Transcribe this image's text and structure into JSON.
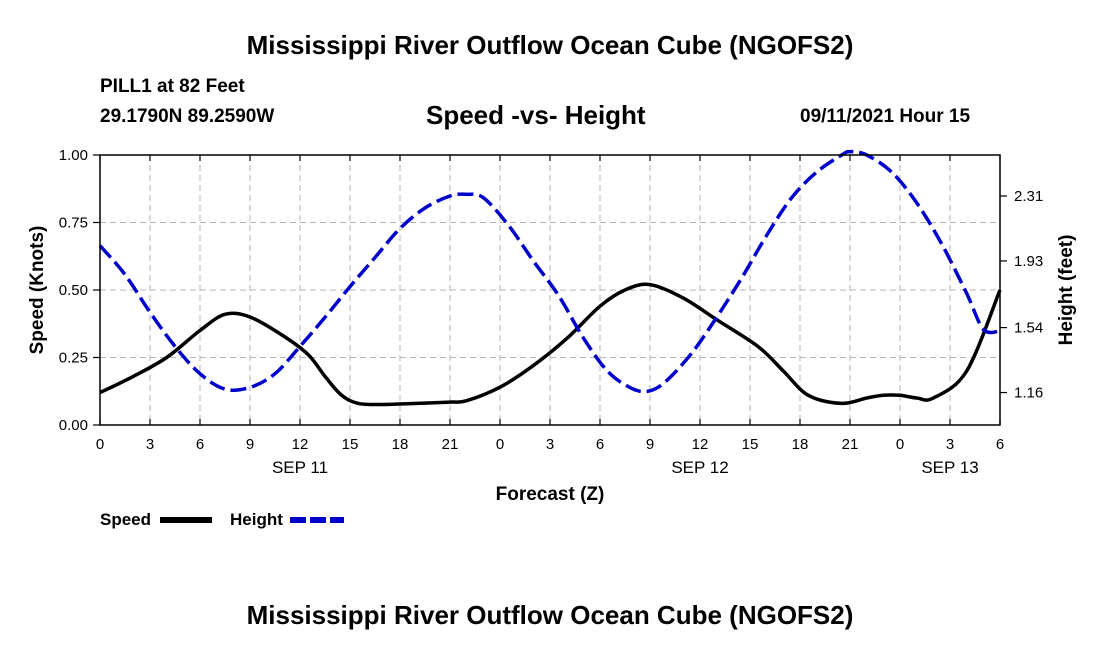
{
  "header": {
    "title": "Mississippi River Outflow Ocean Cube (NGOFS2)",
    "station": "PILL1 at 82 Feet",
    "coords": "29.1790N  89.2590W",
    "subtitle": "Speed -vs- Height",
    "datetime": "09/11/2021 Hour 15"
  },
  "footer": {
    "title": "Mississippi River Outflow Ocean Cube (NGOFS2)"
  },
  "legend": {
    "speed_label": "Speed",
    "height_label": "Height"
  },
  "colors": {
    "speed": "#000000",
    "height": "#0000cc",
    "grid": "#b4b4b4"
  },
  "chart_data": {
    "type": "line",
    "title": "Speed -vs- Height",
    "xlabel": "Forecast (Z)",
    "ylabel": "Speed (Knots)",
    "y2label": "Height (feet)",
    "xlim": [
      0,
      54
    ],
    "ylim": [
      0,
      1.0
    ],
    "y2lim": [
      0.97,
      2.55
    ],
    "x_ticks": [
      0,
      3,
      6,
      9,
      12,
      15,
      18,
      21,
      24,
      27,
      30,
      33,
      36,
      39,
      42,
      45,
      48,
      51,
      54
    ],
    "x_tick_labels": [
      "0",
      "3",
      "6",
      "9",
      "12",
      "15",
      "18",
      "21",
      "0",
      "3",
      "6",
      "9",
      "12",
      "15",
      "18",
      "21",
      "0",
      "3",
      "6"
    ],
    "date_labels": [
      {
        "x": 12,
        "label": "SEP 11"
      },
      {
        "x": 36,
        "label": "SEP 12"
      },
      {
        "x": 51,
        "label": "SEP 13"
      }
    ],
    "y_ticks": [
      0.0,
      0.25,
      0.5,
      0.75,
      1.0
    ],
    "y_tick_labels": [
      "0.00",
      "0.25",
      "0.50",
      "0.75",
      "1.00"
    ],
    "y2_ticks": [
      1.16,
      1.54,
      1.93,
      2.31
    ],
    "y2_tick_labels": [
      "1.16",
      "1.54",
      "1.93",
      "2.31"
    ],
    "series": [
      {
        "name": "Speed",
        "axis": "left",
        "style": "solid",
        "x": [
          0,
          2,
          4,
          6,
          7.5,
          9,
          11,
          12.5,
          13.5,
          14.5,
          15.5,
          17,
          19,
          21,
          22,
          24,
          26,
          28,
          30,
          31.5,
          33,
          35,
          37,
          39.5,
          41,
          42.5,
          44.5,
          46,
          47,
          48,
          49,
          50,
          52,
          54
        ],
        "y": [
          0.12,
          0.18,
          0.25,
          0.35,
          0.41,
          0.4,
          0.33,
          0.26,
          0.18,
          0.11,
          0.08,
          0.076,
          0.08,
          0.085,
          0.09,
          0.14,
          0.22,
          0.32,
          0.44,
          0.5,
          0.52,
          0.47,
          0.39,
          0.29,
          0.2,
          0.11,
          0.08,
          0.1,
          0.11,
          0.11,
          0.1,
          0.1,
          0.2,
          0.5
        ]
      },
      {
        "name": "Height",
        "axis": "right",
        "style": "dashed",
        "x": [
          0,
          1.5,
          3,
          4.5,
          6,
          7.5,
          9,
          10.5,
          12,
          13.5,
          15,
          16.5,
          18,
          19.5,
          21,
          22,
          23,
          24.5,
          26,
          27.5,
          29,
          30.5,
          32,
          33,
          34,
          35.5,
          37,
          38.5,
          40,
          41.5,
          43,
          44.5,
          45,
          46,
          47.5,
          49,
          50.5,
          52,
          53,
          54
        ],
        "y": [
          2.02,
          1.85,
          1.63,
          1.43,
          1.27,
          1.18,
          1.19,
          1.27,
          1.43,
          1.6,
          1.78,
          1.95,
          2.12,
          2.24,
          2.31,
          2.32,
          2.3,
          2.14,
          1.93,
          1.73,
          1.48,
          1.28,
          1.18,
          1.17,
          1.23,
          1.39,
          1.6,
          1.83,
          2.08,
          2.3,
          2.45,
          2.55,
          2.57,
          2.55,
          2.45,
          2.27,
          2.03,
          1.74,
          1.53,
          1.52
        ]
      }
    ]
  }
}
